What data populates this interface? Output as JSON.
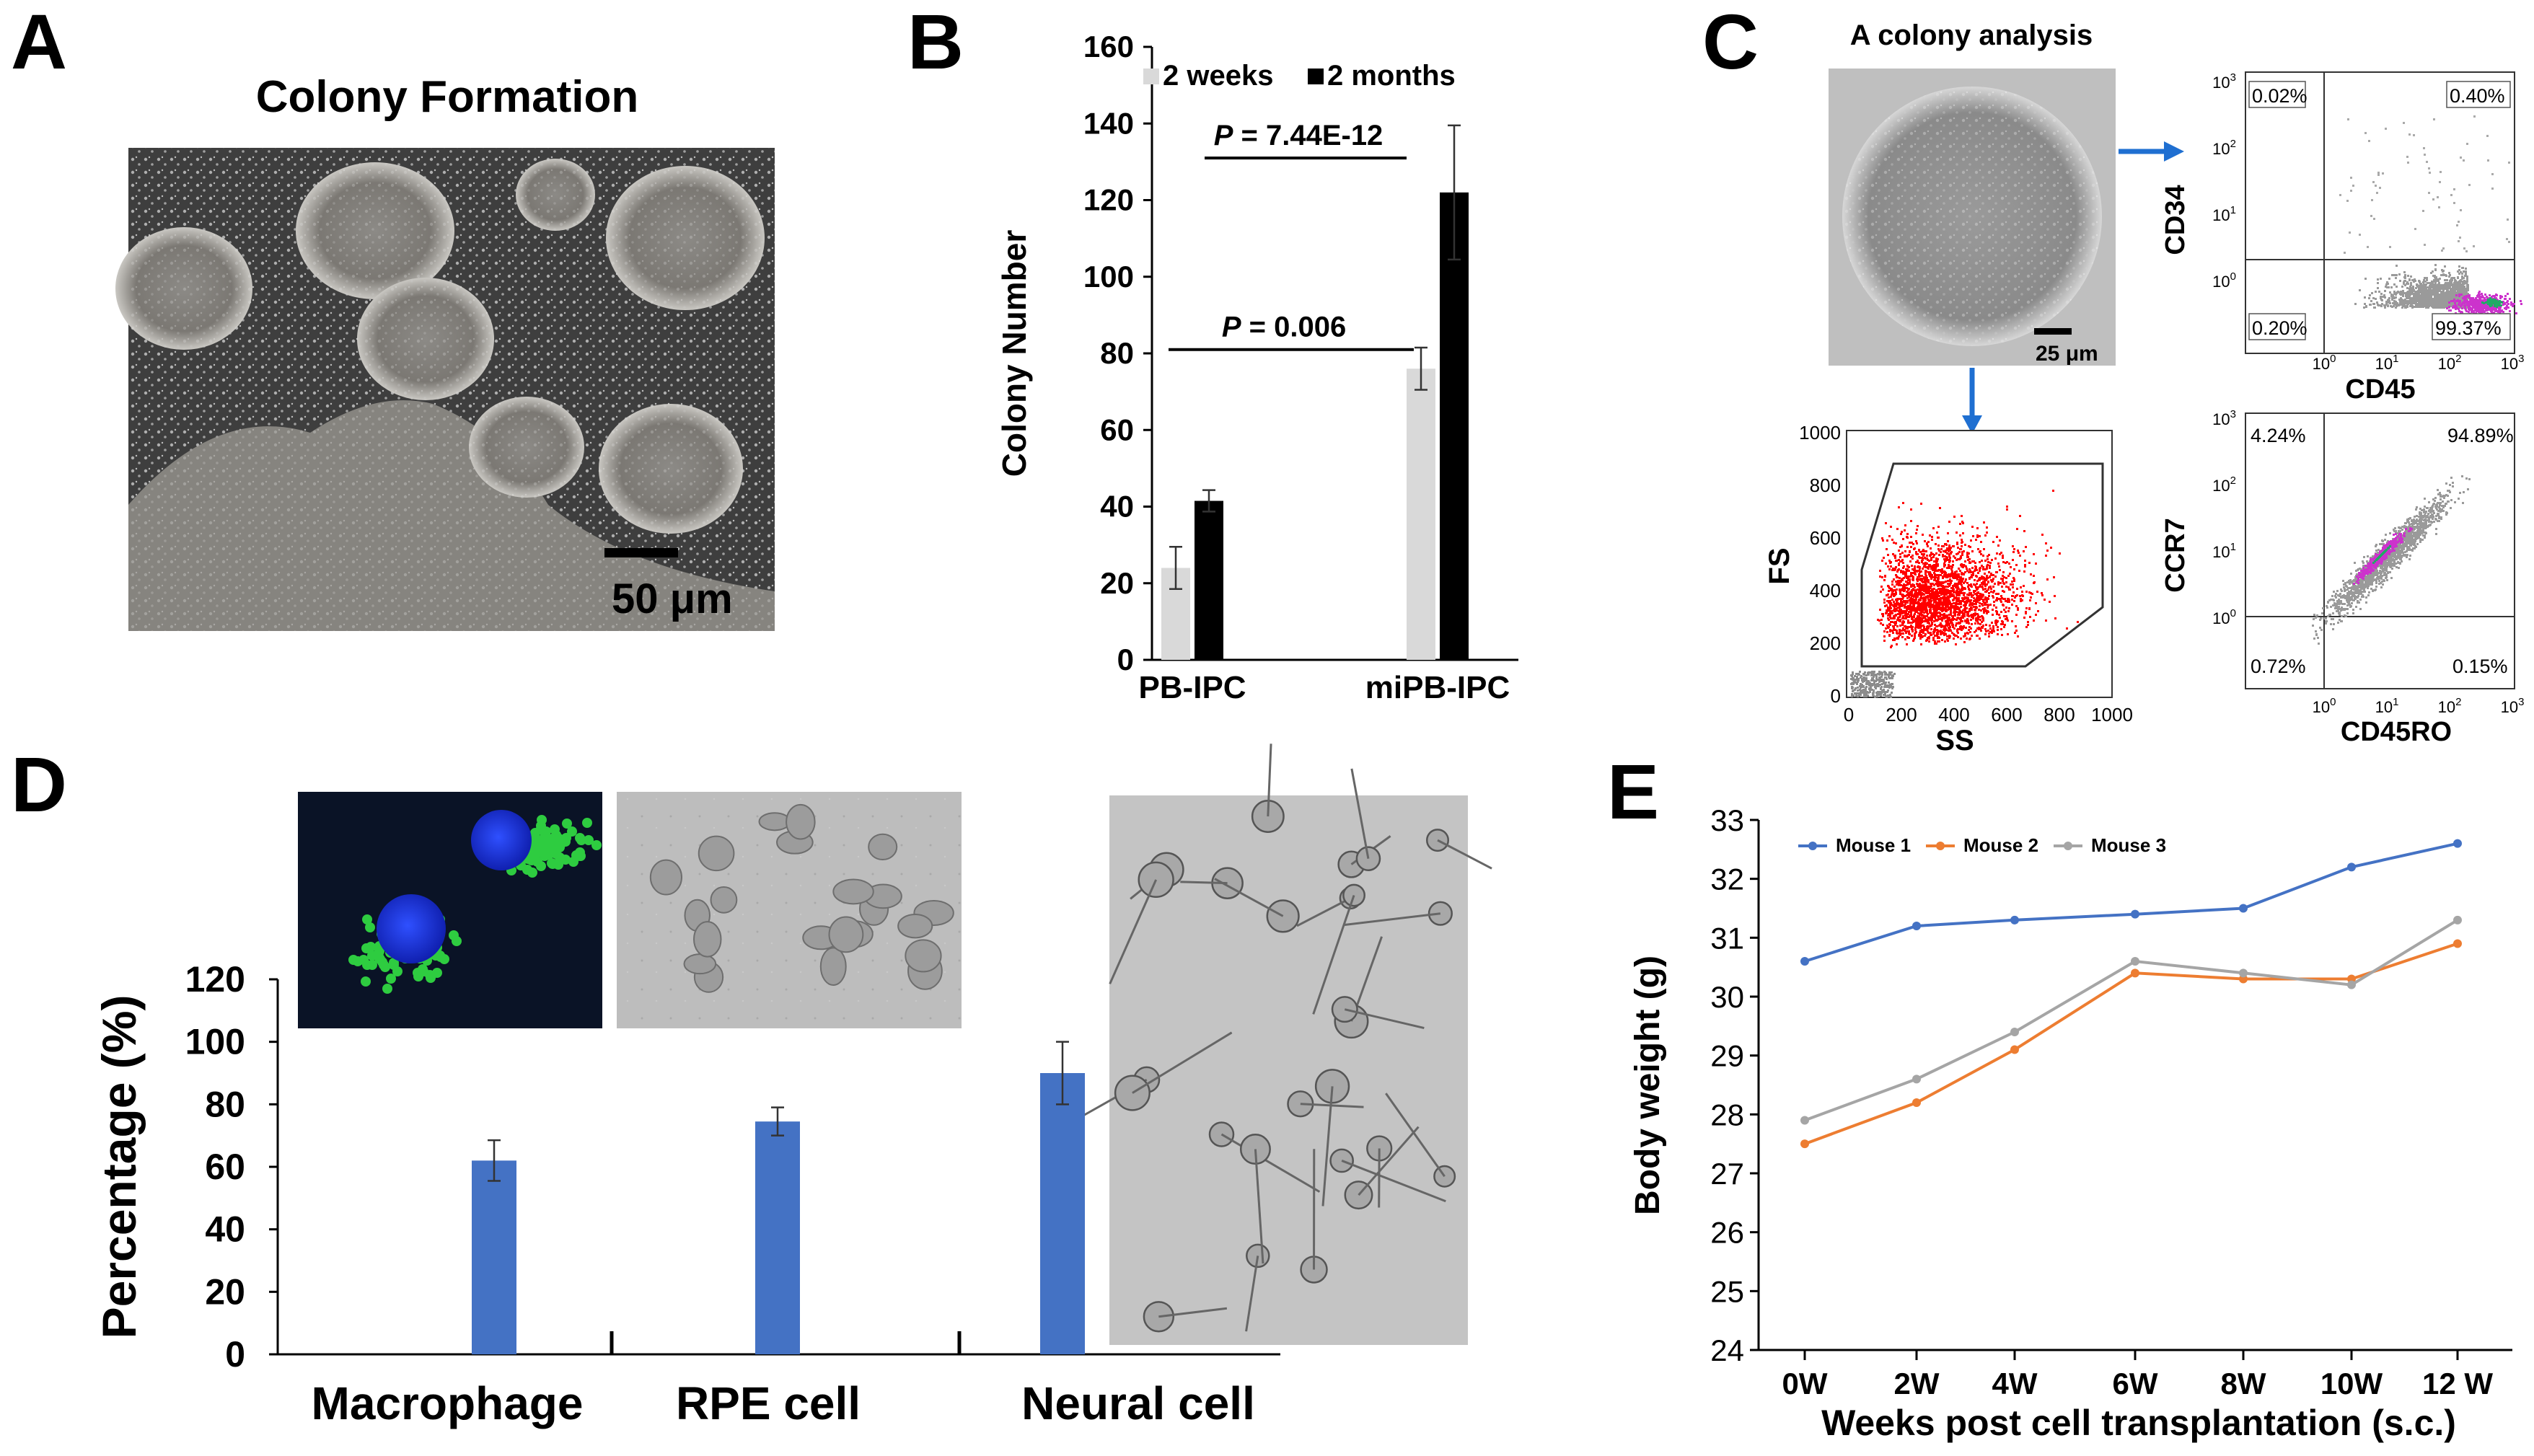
{
  "panels": {
    "A": {
      "letter": "A",
      "title": "Colony Formation",
      "scale_label": "50 μm"
    },
    "B": {
      "letter": "B"
    },
    "C": {
      "letter": "C",
      "title": "A colony analysis",
      "scale_label": "25 μm",
      "fs_ss": {
        "xlabel": "SS",
        "ylabel": "FS",
        "xticks": [
          "0",
          "200",
          "400",
          "600",
          "800",
          "1000"
        ],
        "yticks": [
          "0",
          "200",
          "400",
          "600",
          "800",
          "1000"
        ]
      },
      "cd34_cd45": {
        "xlabel": "CD45",
        "ylabel": "CD34",
        "quadrants": [
          "0.02%",
          "0.40%",
          "0.20%",
          "99.37%"
        ]
      },
      "ccr7_cd45ro": {
        "xlabel": "CD45RO",
        "ylabel": "CCR7",
        "quadrants": [
          "4.24%",
          "94.89%",
          "0.72%",
          "0.15%"
        ]
      },
      "log_ticks": [
        "10",
        "10",
        "10",
        "10"
      ],
      "log_exps": [
        "0",
        "1",
        "2",
        "3"
      ]
    },
    "D": {
      "letter": "D"
    },
    "E": {
      "letter": "E"
    }
  },
  "chart_data": [
    {
      "id": "B",
      "type": "bar",
      "categories": [
        "PB-IPC",
        "miPB-IPC"
      ],
      "series": [
        {
          "name": "2 weeks",
          "values": [
            24,
            76
          ],
          "errors": [
            5.5,
            5.5
          ],
          "color": "#d9d9d9"
        },
        {
          "name": "2 months",
          "values": [
            41.5,
            122
          ],
          "errors": [
            2.8,
            17.5
          ],
          "color": "#000000"
        }
      ],
      "ylabel": "Colony Number",
      "ylim": [
        0,
        160
      ],
      "yticks": [
        "0",
        "20",
        "40",
        "60",
        "80",
        "100",
        "120",
        "140",
        "160"
      ],
      "annotations": [
        {
          "italic": "P",
          "text": " = 0.006",
          "y": 81
        },
        {
          "italic": "P",
          "text": " = 7.44E-12",
          "y": 131
        }
      ]
    },
    {
      "id": "D",
      "type": "bar",
      "categories": [
        "Macrophage",
        "RPE cell",
        "Neural cell"
      ],
      "values": [
        62,
        74.5,
        90
      ],
      "errors": [
        6.5,
        4.5,
        10
      ],
      "color": "#4472c4",
      "ylabel": "Percentage (%)",
      "ylim": [
        0,
        120
      ],
      "yticks": [
        "0",
        "20",
        "40",
        "60",
        "80",
        "100",
        "120"
      ]
    },
    {
      "id": "E",
      "type": "line",
      "x": [
        "0W",
        "2W",
        "4W",
        "6W",
        "8W",
        "10W",
        "12 W"
      ],
      "series": [
        {
          "name": "Mouse 1",
          "values": [
            30.6,
            31.2,
            31.3,
            31.4,
            31.5,
            32.2,
            32.6
          ],
          "color": "#4472c4"
        },
        {
          "name": "Mouse 2",
          "values": [
            27.5,
            28.2,
            29.1,
            30.4,
            30.3,
            30.3,
            30.9
          ],
          "color": "#ed7d31"
        },
        {
          "name": "Mouse 3",
          "values": [
            27.9,
            28.6,
            29.4,
            30.6,
            30.4,
            30.2,
            31.3
          ],
          "color": "#a5a5a5"
        }
      ],
      "xlabel": "Weeks post cell transplantation (s.c.)",
      "ylabel": "Body weight (g)",
      "ylim": [
        24,
        33
      ],
      "yticks": [
        "24",
        "25",
        "26",
        "27",
        "28",
        "29",
        "30",
        "31",
        "32",
        "33"
      ],
      "legend": "top-left"
    }
  ]
}
